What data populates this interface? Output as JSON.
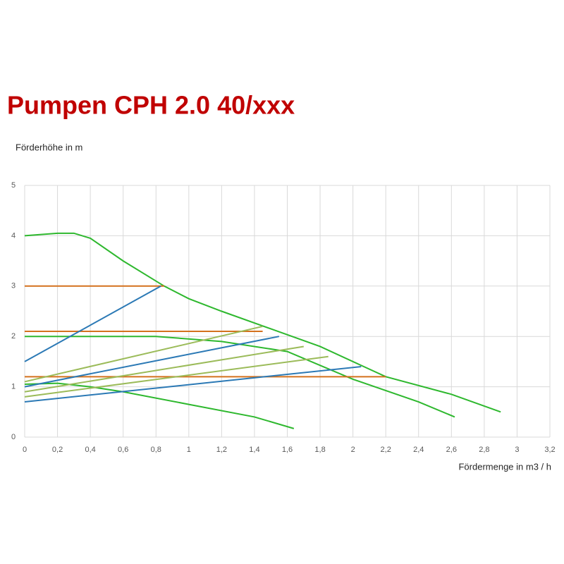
{
  "chart_data": {
    "type": "line",
    "title": "Pumpen CPH 2.0 40/xxx",
    "y_label": "Förderhöhe in m",
    "x_label": "Fördermenge in m3 / h",
    "xlim": [
      0,
      3.2
    ],
    "ylim": [
      0,
      5
    ],
    "xticks": [
      0,
      {
        "value": 0.2,
        "label": "0,2"
      },
      {
        "value": 0.4,
        "label": "0,4"
      },
      {
        "value": 0.6,
        "label": "0,6"
      },
      {
        "value": 0.8,
        "label": "0,8"
      },
      1,
      {
        "value": 1.2,
        "label": "1,2"
      },
      {
        "value": 1.4,
        "label": "1,4"
      },
      {
        "value": 1.6,
        "label": "1,6"
      },
      {
        "value": 1.8,
        "label": "1,8"
      },
      2,
      {
        "value": 2.2,
        "label": "2,2"
      },
      {
        "value": 2.4,
        "label": "2,4"
      },
      {
        "value": 2.6,
        "label": "2,6"
      },
      {
        "value": 2.8,
        "label": "2,8"
      },
      3,
      {
        "value": 3.2,
        "label": "3,2"
      }
    ],
    "yticks": [
      0,
      1,
      2,
      3,
      4,
      5
    ],
    "grid": true,
    "series": [
      {
        "color": "#2eb82e",
        "x": [
          0,
          0.2,
          0.3,
          0.4,
          0.6,
          0.85,
          1.0,
          1.2,
          1.5,
          1.8,
          2.2,
          2.6,
          2.9
        ],
        "values": [
          4.0,
          4.05,
          4.05,
          3.95,
          3.5,
          3.0,
          2.75,
          2.5,
          2.15,
          1.8,
          1.2,
          0.85,
          0.5
        ]
      },
      {
        "color": "#2eb82e",
        "x": [
          0,
          0.8,
          1.2,
          1.6,
          2.0,
          2.4,
          2.62
        ],
        "values": [
          2.0,
          2.0,
          1.9,
          1.7,
          1.15,
          0.7,
          0.4
        ]
      },
      {
        "color": "#2eb82e",
        "x": [
          0,
          0.2,
          0.4,
          0.6,
          1.0,
          1.4,
          1.64
        ],
        "values": [
          1.05,
          1.07,
          1.0,
          0.9,
          0.65,
          0.4,
          0.17
        ]
      },
      {
        "color": "#d4711d",
        "x": [
          0,
          0.85
        ],
        "values": [
          3.0,
          3.0
        ]
      },
      {
        "color": "#d4711d",
        "x": [
          0,
          1.45
        ],
        "values": [
          2.1,
          2.1
        ]
      },
      {
        "color": "#d4711d",
        "x": [
          0,
          2.2
        ],
        "values": [
          1.2,
          1.2
        ]
      },
      {
        "color": "#2b79b5",
        "x": [
          0,
          0.83
        ],
        "values": [
          1.5,
          3.0
        ]
      },
      {
        "color": "#2b79b5",
        "x": [
          0,
          1.55
        ],
        "values": [
          1.0,
          2.0
        ]
      },
      {
        "color": "#2b79b5",
        "x": [
          0,
          2.05
        ],
        "values": [
          0.7,
          1.4
        ]
      },
      {
        "color": "#9bbb59",
        "x": [
          0,
          1.45
        ],
        "values": [
          1.1,
          2.2
        ]
      },
      {
        "color": "#9bbb59",
        "x": [
          0,
          1.7
        ],
        "values": [
          0.9,
          1.8
        ]
      },
      {
        "color": "#9bbb59",
        "x": [
          0,
          1.85
        ],
        "values": [
          0.8,
          1.6
        ]
      }
    ]
  }
}
